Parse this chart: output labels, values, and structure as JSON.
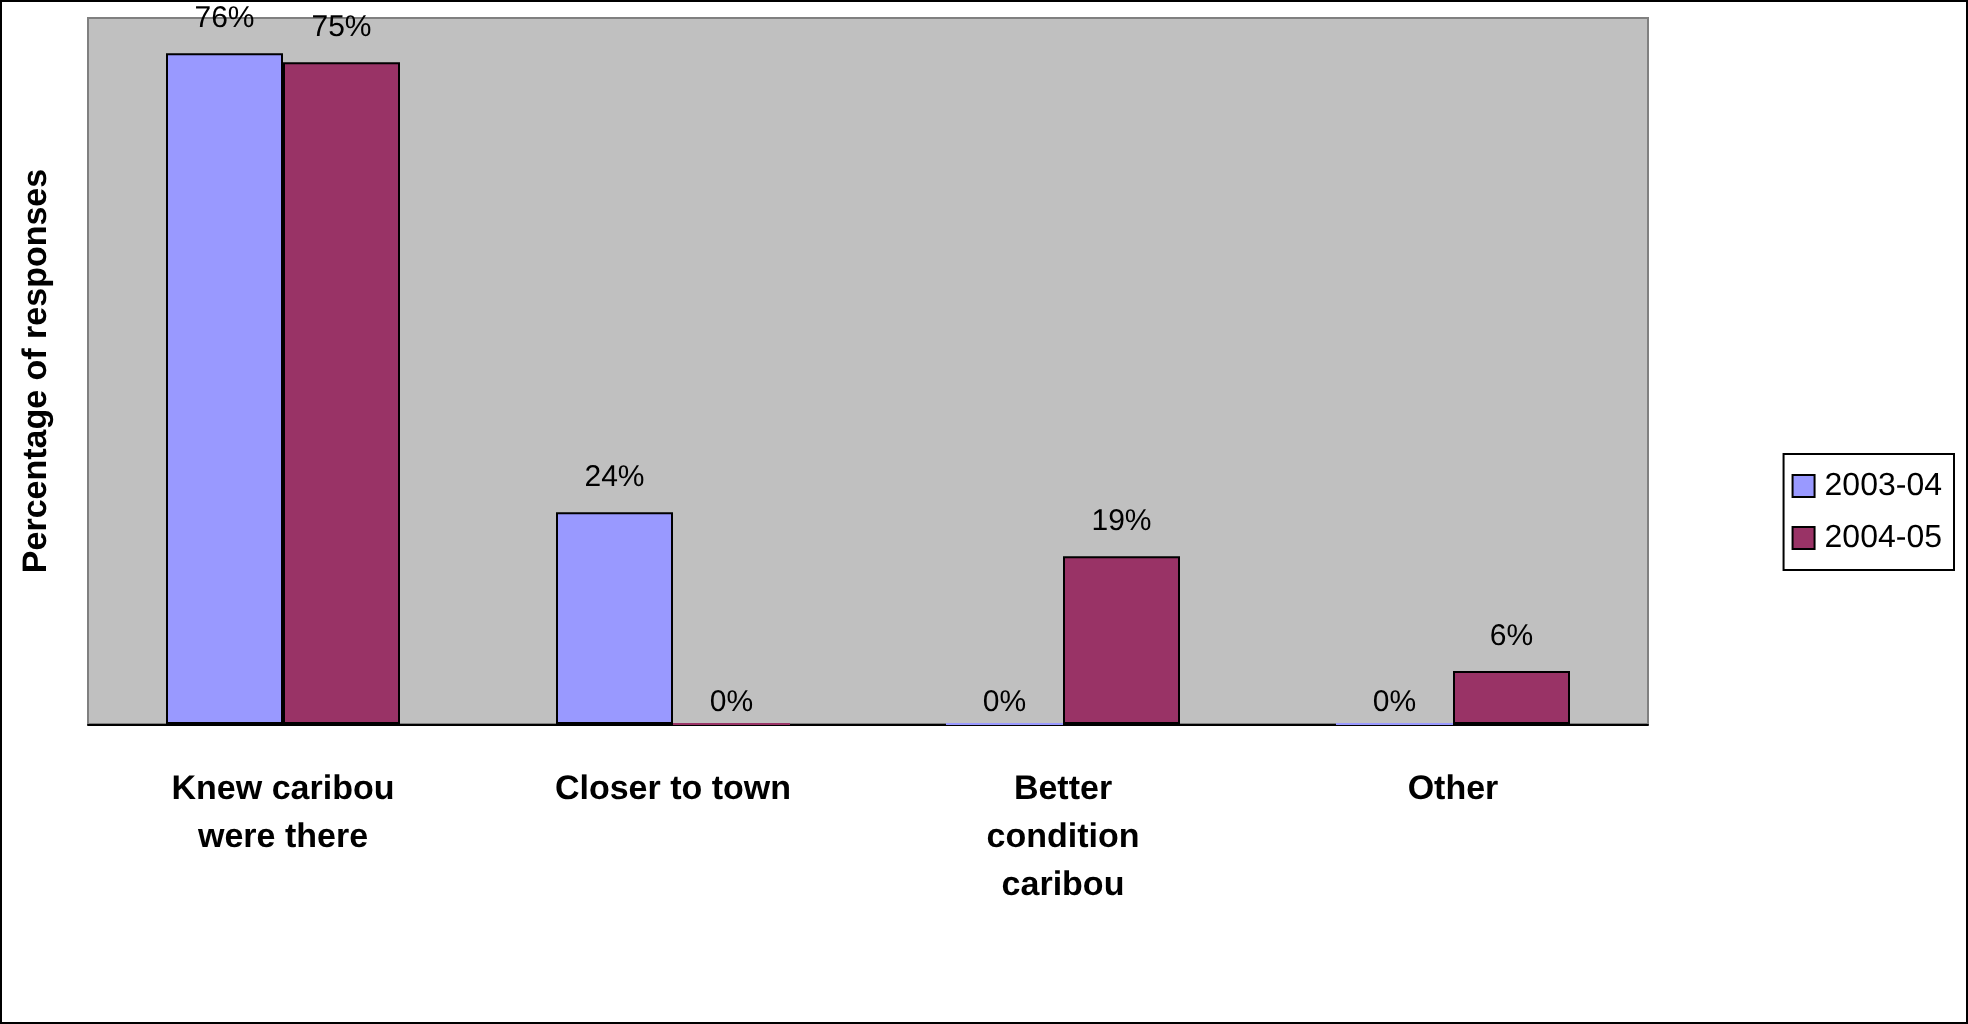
{
  "chart_data": {
    "type": "bar",
    "ylabel": "Percentage of responses",
    "categories": [
      "Knew caribou were there",
      "Closer to town",
      "Better condition caribou",
      "Other"
    ],
    "series": [
      {
        "name": "2003-04",
        "color": "#9999ff",
        "values": [
          76,
          24,
          0,
          0
        ],
        "value_labels": [
          "76%",
          "24%",
          "0%",
          "0%"
        ]
      },
      {
        "name": "2004-05",
        "color": "#993366",
        "values": [
          75,
          0,
          19,
          6
        ],
        "value_labels": [
          "75%",
          "0%",
          "19%",
          "6%"
        ]
      }
    ],
    "ylim": [
      0,
      80
    ],
    "tick_labels": "x",
    "grid": false,
    "legend": "right"
  }
}
